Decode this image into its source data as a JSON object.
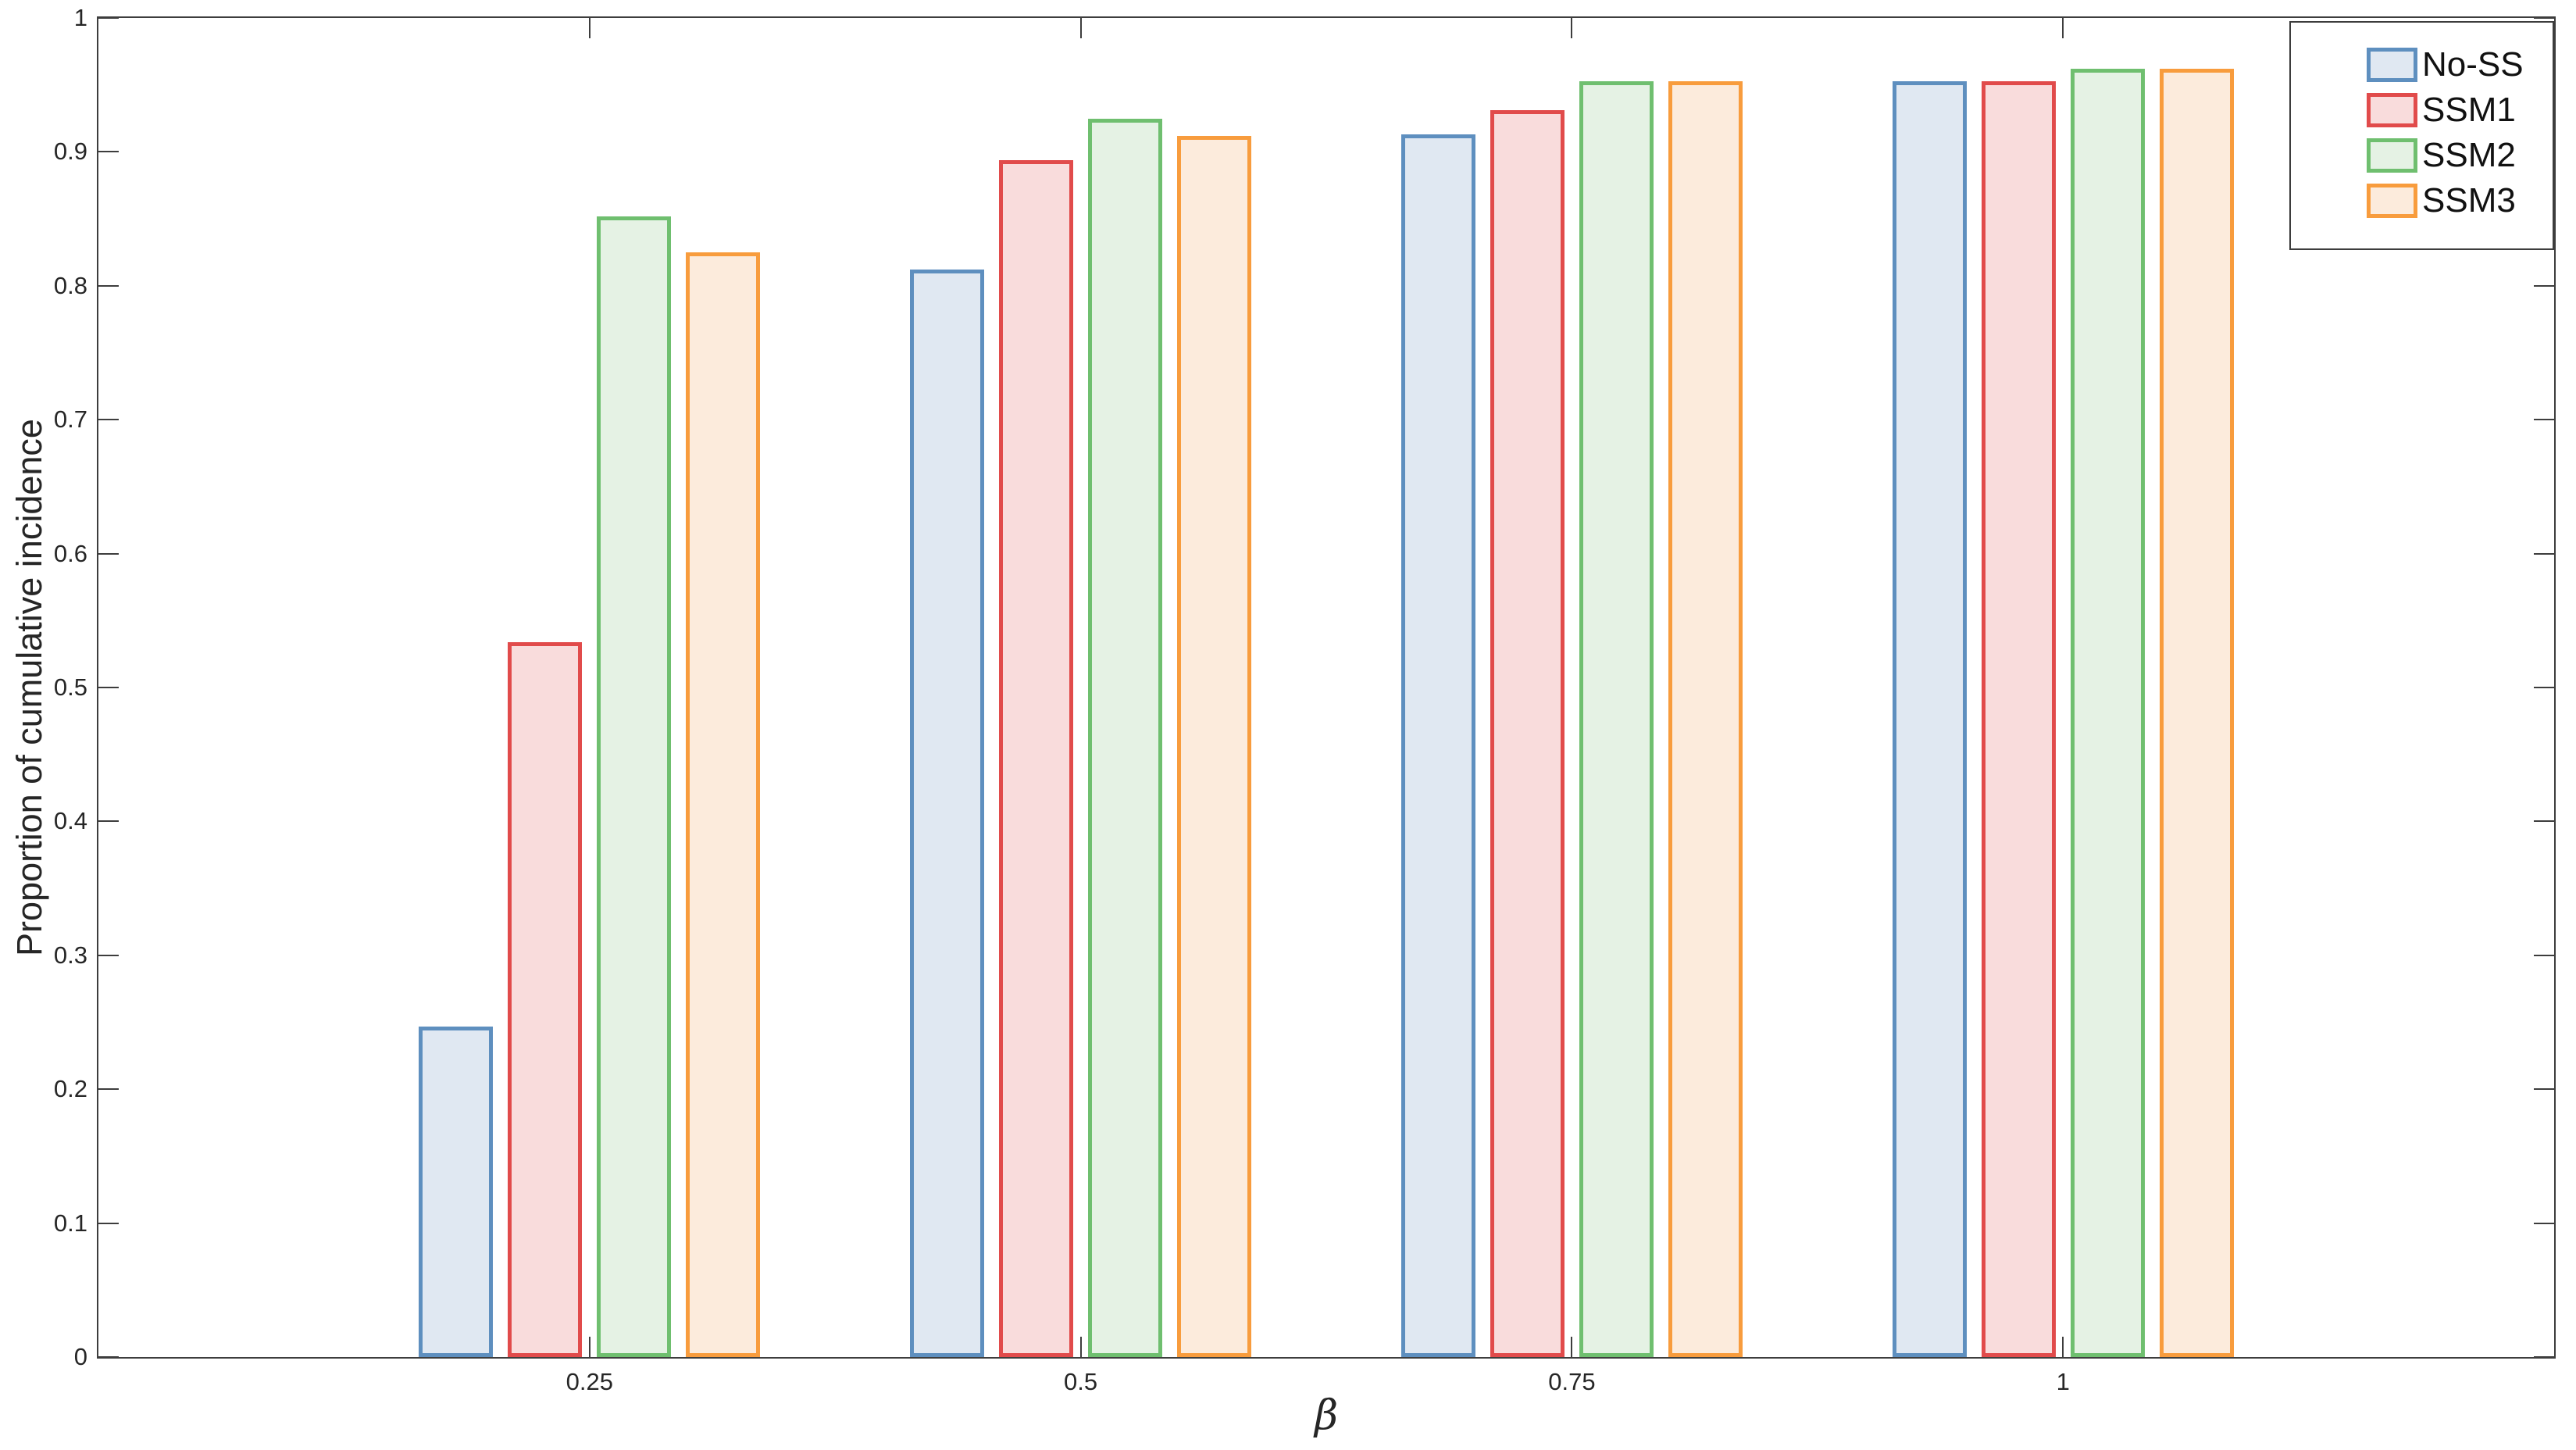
{
  "chart_data": {
    "type": "bar",
    "title": "",
    "xlabel": "β",
    "ylabel": "Proportion of cumulative incidence",
    "categories": [
      "0.25",
      "0.5",
      "0.75",
      "1"
    ],
    "x_values": [
      0.25,
      0.5,
      0.75,
      1
    ],
    "series": [
      {
        "name": "No-SS",
        "edge_color": "#5E8FBF",
        "fill_color": "#E0E8F2",
        "values": [
          0.247,
          0.812,
          0.913,
          0.953
        ]
      },
      {
        "name": "SSM1",
        "edge_color": "#E14B4B",
        "fill_color": "#F9DCDC",
        "values": [
          0.534,
          0.894,
          0.931,
          0.953
        ]
      },
      {
        "name": "SSM2",
        "edge_color": "#6FBF6F",
        "fill_color": "#E5F2E4",
        "values": [
          0.852,
          0.925,
          0.953,
          0.962
        ]
      },
      {
        "name": "SSM3",
        "edge_color": "#F89C3D",
        "fill_color": "#FCEBDC",
        "values": [
          0.825,
          0.912,
          0.953,
          0.962
        ]
      }
    ],
    "xlim": [
      0,
      1.25
    ],
    "ylim": [
      0,
      1
    ],
    "y_ticks": [
      0,
      0.1,
      0.2,
      0.3,
      0.4,
      0.5,
      0.6,
      0.7,
      0.8,
      0.9,
      1
    ],
    "y_tick_labels": [
      "0",
      "0.1",
      "0.2",
      "0.3",
      "0.4",
      "0.5",
      "0.6",
      "0.7",
      "0.8",
      "0.9",
      "1"
    ],
    "grid": false,
    "legend_position": "top-right",
    "axis_color": "#3d3d3d",
    "tick_direction": "in",
    "box": true
  }
}
